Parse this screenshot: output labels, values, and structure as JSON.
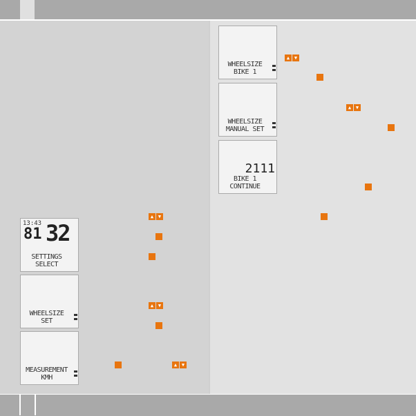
{
  "colors": {
    "accent": "#e8750f",
    "header": "#a9a9a9",
    "left_panel": "#d3d3d3",
    "right_panel": "#e2e2e2"
  },
  "screens": [
    {
      "time": "13:43",
      "big_left": "81",
      "big_right": "32",
      "line1": "SETTINGS",
      "line2": "SELECT"
    },
    {
      "line1": "WHEELSIZE",
      "line2": "SET"
    },
    {
      "line1": "MEASUREMENT",
      "line2": "KMH"
    },
    {
      "line1": "WHEELSIZE",
      "line2": "BIKE 1"
    },
    {
      "line1": "WHEELSIZE",
      "line2": "MANUAL SET"
    },
    {
      "value": "2111",
      "line1": "BIKE 1",
      "line2": "CONTINUE"
    }
  ],
  "icons": {
    "updown": "up-down-arrow-buttons-icon",
    "button": "button-square-icon",
    "up": "▲",
    "down": "▼"
  }
}
